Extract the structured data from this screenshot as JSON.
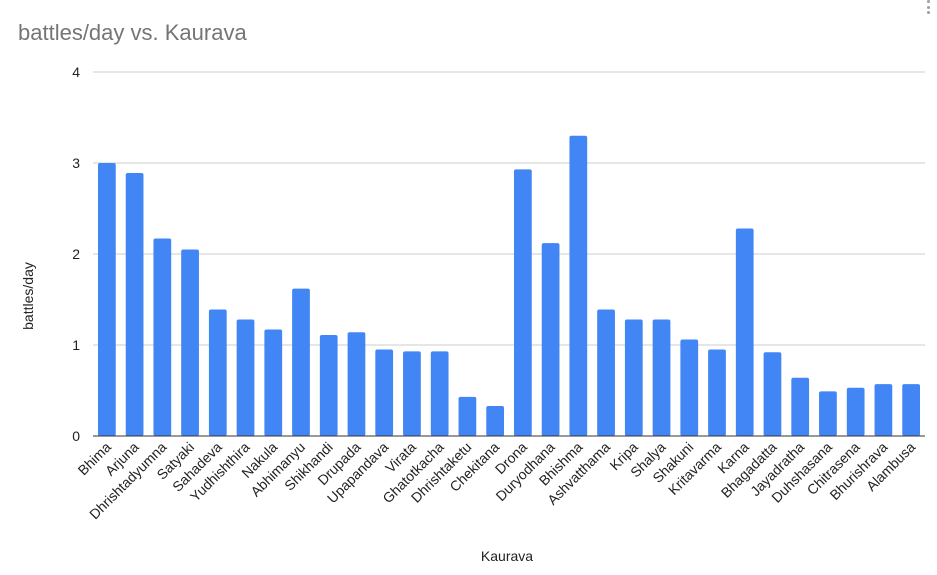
{
  "chart_data": {
    "type": "bar",
    "title": "battles/day vs. Kaurava",
    "xlabel": "Kaurava",
    "ylabel": "battles/day",
    "ylim": [
      0,
      4
    ],
    "yticks": [
      0,
      1,
      2,
      3,
      4
    ],
    "grid": true,
    "legend": "none",
    "bar_color": "#4285f4",
    "categories": [
      "Bhima",
      "Arjuna",
      "Dhrishtadyumna",
      "Satyaki",
      "Sahadeva",
      "Yudhishthira",
      "Nakula",
      "Abhimanyu",
      "Shikhandi",
      "Drupada",
      "Upapandava",
      "Virata",
      "Ghatotkacha",
      "Dhrishtaketu",
      "Chekitana",
      "Drona",
      "Duryodhana",
      "Bhishma",
      "Ashvatthama",
      "Kripa",
      "Shalya",
      "Shakuni",
      "Kritavarma",
      "Karna",
      "Bhagadatta",
      "Jayadratha",
      "Duhshasana",
      "Chitrasena",
      "Bhurishrava",
      "Alambusa"
    ],
    "values": [
      3.0,
      2.89,
      2.17,
      2.05,
      1.39,
      1.28,
      1.17,
      1.62,
      1.11,
      1.14,
      0.95,
      0.93,
      0.93,
      0.43,
      0.33,
      2.93,
      2.12,
      3.3,
      1.39,
      1.28,
      1.28,
      1.06,
      0.95,
      2.28,
      0.92,
      0.64,
      0.49,
      0.53,
      0.57,
      0.57
    ]
  },
  "ui": {
    "menu_icon": "more-vert-icon"
  }
}
